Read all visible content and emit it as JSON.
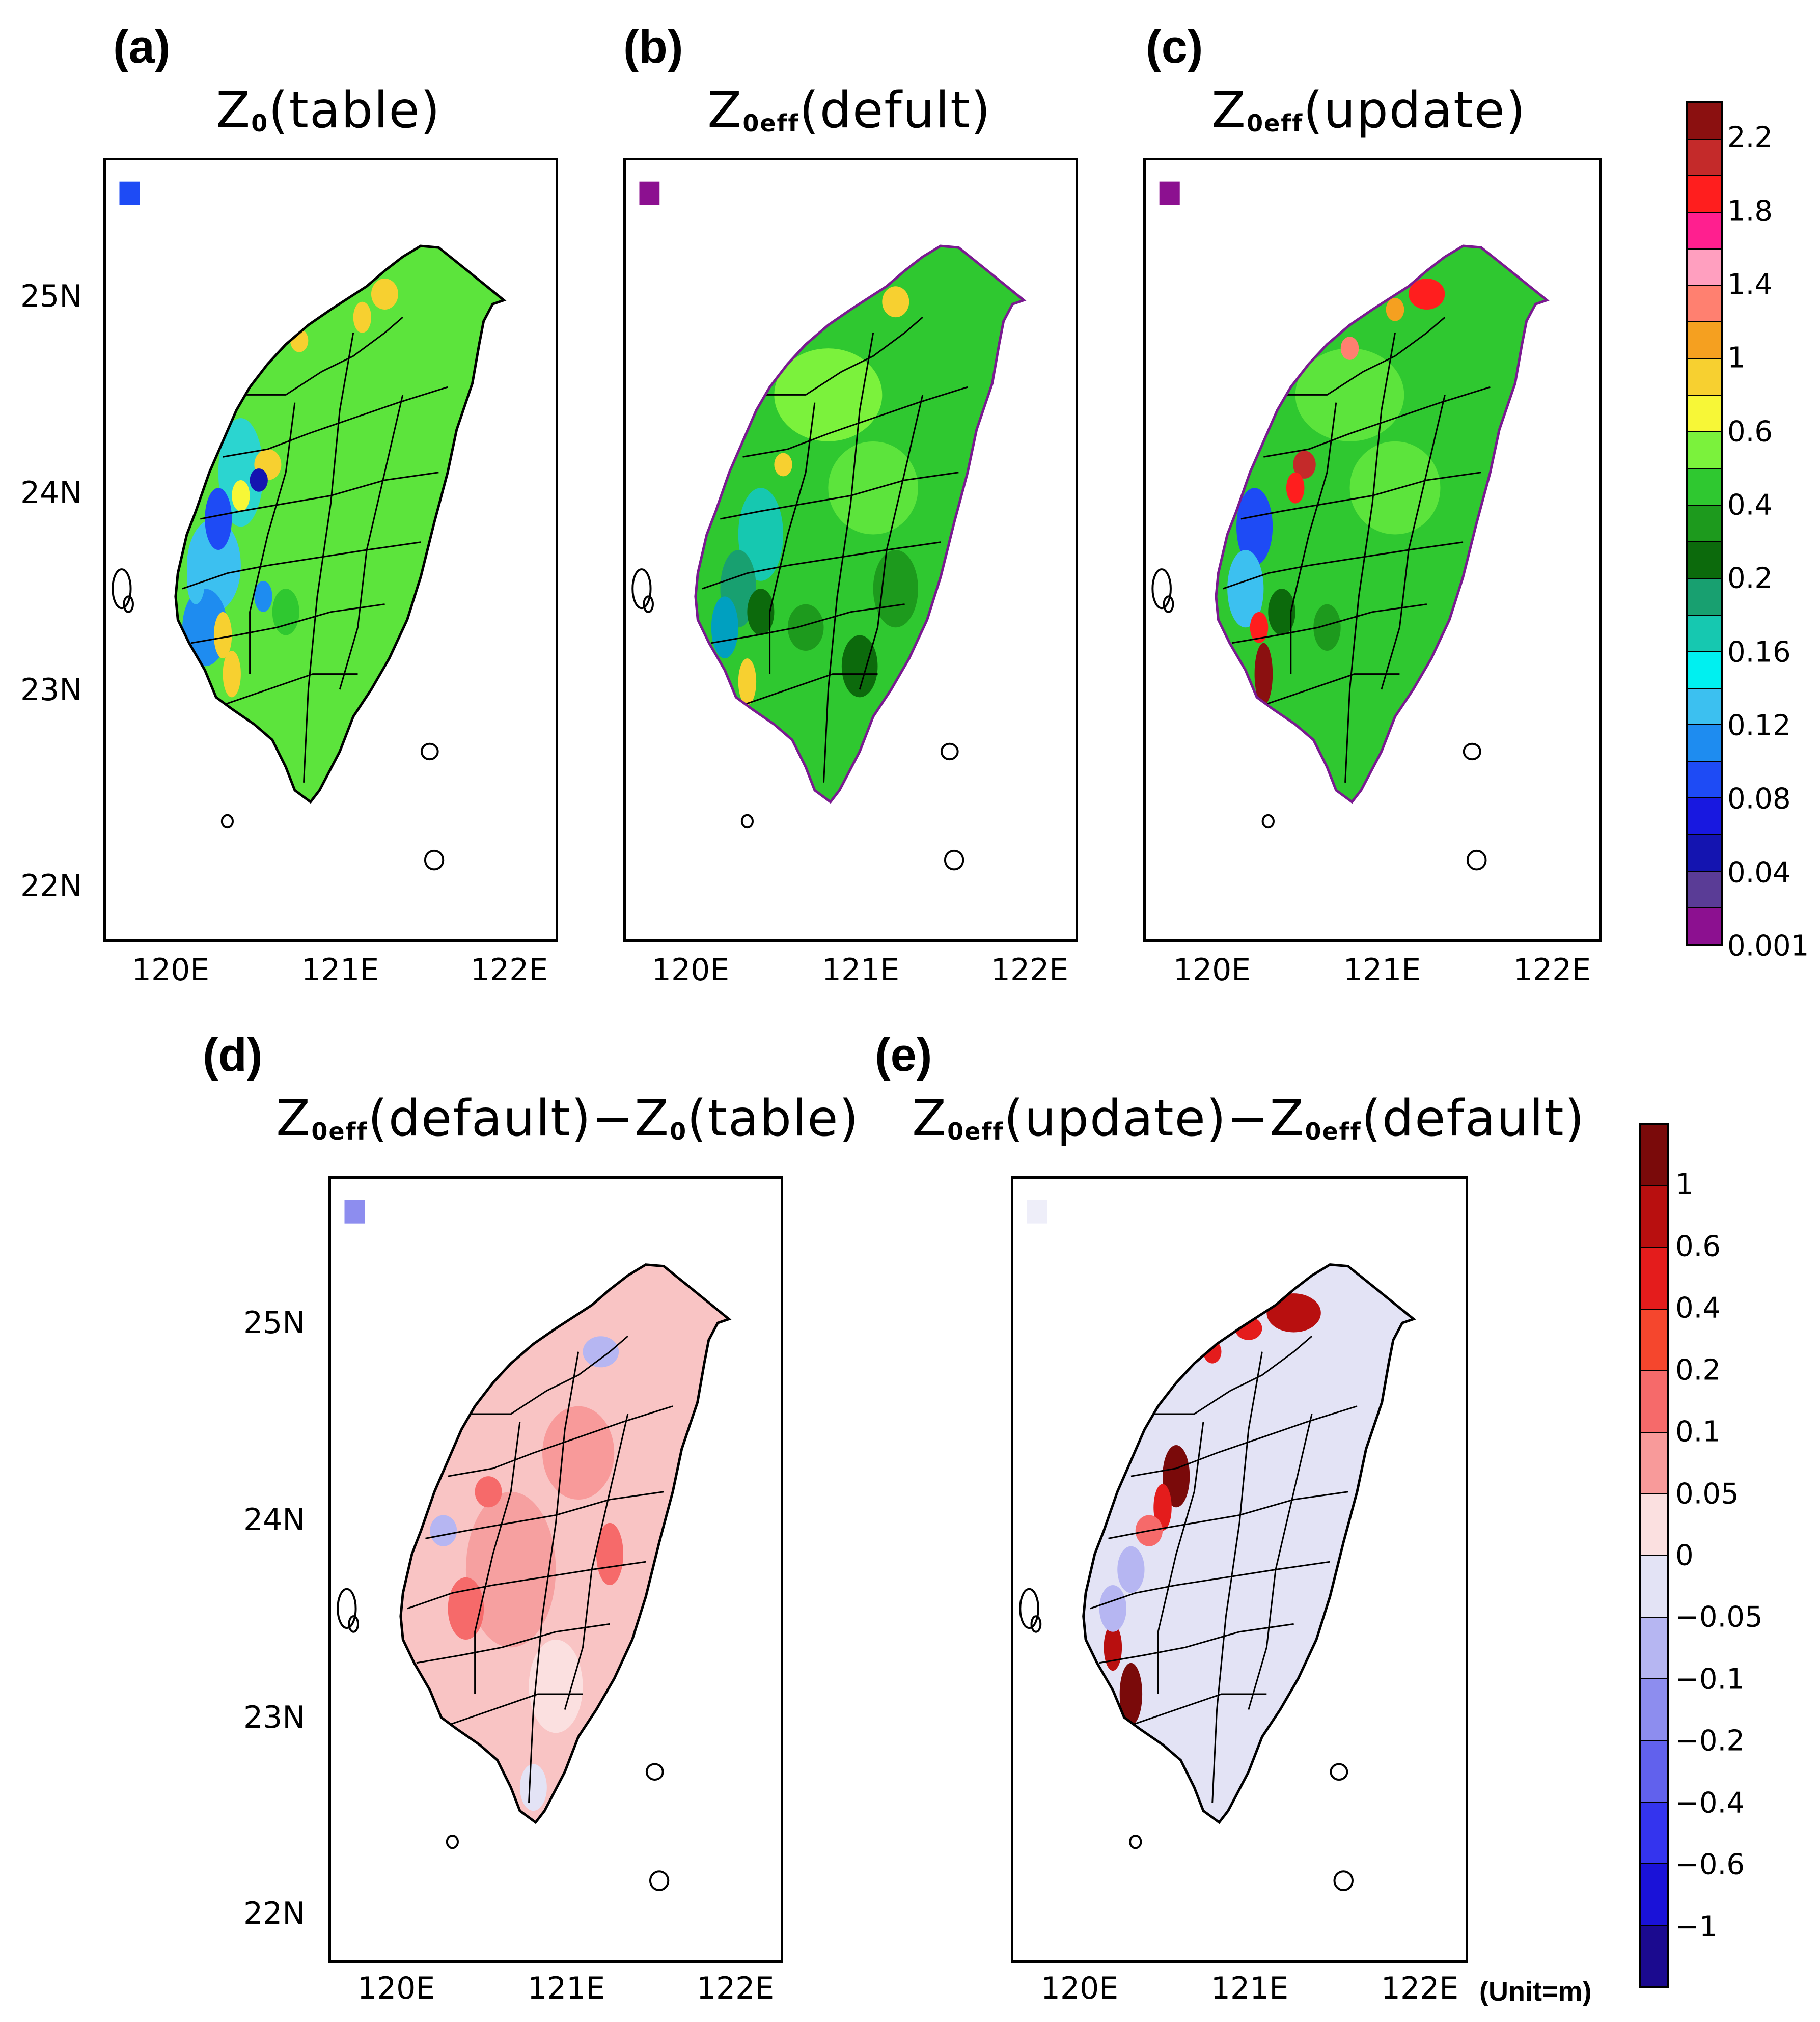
{
  "panels": [
    {
      "id": "a",
      "letter": "(a)",
      "title_main": "Z",
      "title_sub": "0",
      "title_rest": "(table)",
      "style": "abs_table"
    },
    {
      "id": "b",
      "letter": "(b)",
      "title_main": "Z",
      "title_sub": "0eff",
      "title_rest": "(defult)",
      "style": "abs_default"
    },
    {
      "id": "c",
      "letter": "(c)",
      "title_main": "Z",
      "title_sub": "0eff",
      "title_rest": "(update)",
      "style": "abs_update"
    },
    {
      "id": "d",
      "letter": "(d)",
      "title_a_main": "Z",
      "title_a_sub": "0eff",
      "title_a_rest": "(default)",
      "title_sep": "−",
      "title_b_main": "Z",
      "title_b_sub": "0",
      "title_b_rest": "(table)",
      "style": "diff_d"
    },
    {
      "id": "e",
      "letter": "(e)",
      "title_a_main": "Z",
      "title_a_sub": "0eff",
      "title_a_rest": "(update)",
      "title_sep": "−",
      "title_b_main": "Z",
      "title_b_sub": "0eff",
      "title_b_rest": "(default)",
      "style": "diff_e"
    }
  ],
  "axes": {
    "x_ticks": [
      "120E",
      "121E",
      "122E"
    ],
    "y_ticks": [
      "25N",
      "24N",
      "23N",
      "22N"
    ]
  },
  "colorbar_abs": {
    "labels": [
      "2.2",
      "1.8",
      "1.4",
      "1",
      "0.6",
      "0.4",
      "0.2",
      "0.16",
      "0.12",
      "0.08",
      "0.04",
      "0.001"
    ],
    "colors": [
      "#8b1010",
      "#c42a2a",
      "#ff1e1e",
      "#ff1f8f",
      "#ff9fbf",
      "#ff8070",
      "#f5a020",
      "#f7d030",
      "#f7f737",
      "#7bf23c",
      "#2fc830",
      "#1d9a1d",
      "#0c6a0c",
      "#18a070",
      "#16c8b0",
      "#00f0f0",
      "#3cc0f0",
      "#1e8cf0",
      "#1e4bf5",
      "#1818e0",
      "#1414b0",
      "#5a3c96",
      "#8c1090"
    ]
  },
  "colorbar_diff": {
    "labels": [
      "1",
      "0.6",
      "0.4",
      "0.2",
      "0.1",
      "0.05",
      "0",
      "−0.05",
      "−0.1",
      "−0.2",
      "−0.4",
      "−0.6",
      "−1"
    ],
    "colors": [
      "#7a0a0a",
      "#b80f0f",
      "#e41c1c",
      "#f5462d",
      "#f66a6a",
      "#f89a9a",
      "#fbe0e0",
      "#e3e3f5",
      "#b6b6f2",
      "#8d8def",
      "#6161ed",
      "#3434ee",
      "#1a12d8",
      "#1b0a8f"
    ]
  },
  "unit_label": "(Unit=m)"
}
